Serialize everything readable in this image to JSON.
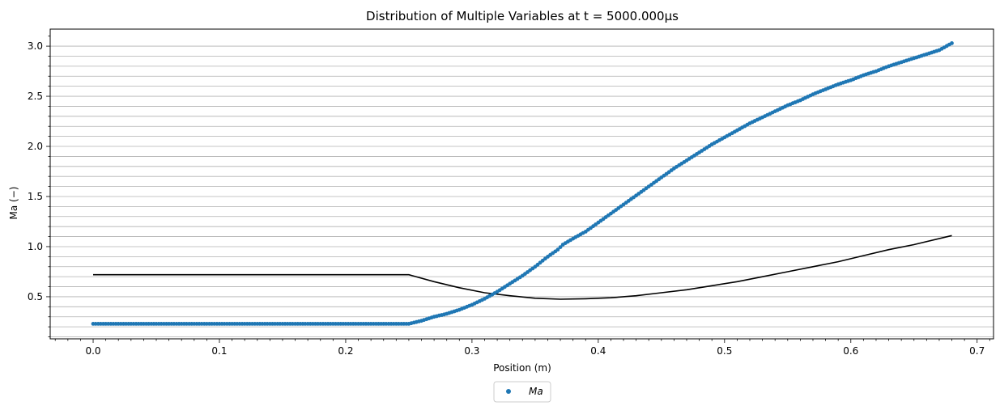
{
  "chart_data": {
    "type": "scatter",
    "title": "Distribution of Multiple Variables at t = 5000.000μs",
    "xlabel": "Position (m)",
    "ylabel": "Ma (−)",
    "xlim": [
      -0.034,
      0.713
    ],
    "ylim": [
      0.08,
      3.17
    ],
    "x_ticks": [
      "0.0",
      "0.1",
      "0.2",
      "0.3",
      "0.4",
      "0.5",
      "0.6",
      "0.7"
    ],
    "y_ticks": [
      "0.5",
      "1.0",
      "1.5",
      "2.0",
      "2.5",
      "3.0"
    ],
    "grid": "horizontal minor gridlines",
    "legend": {
      "placement": "bottom-center",
      "entries": [
        "Ma"
      ]
    },
    "series": [
      {
        "name": "Ma",
        "kind": "scatter",
        "color": "#1f77b4",
        "x": [
          0.0,
          0.02,
          0.04,
          0.06,
          0.08,
          0.1,
          0.12,
          0.14,
          0.16,
          0.18,
          0.2,
          0.22,
          0.24,
          0.25,
          0.26,
          0.27,
          0.28,
          0.29,
          0.3,
          0.31,
          0.32,
          0.33,
          0.34,
          0.35,
          0.36,
          0.368,
          0.372,
          0.38,
          0.39,
          0.4,
          0.41,
          0.42,
          0.43,
          0.44,
          0.45,
          0.46,
          0.47,
          0.48,
          0.49,
          0.5,
          0.51,
          0.52,
          0.53,
          0.54,
          0.55,
          0.56,
          0.57,
          0.58,
          0.59,
          0.6,
          0.61,
          0.62,
          0.63,
          0.64,
          0.65,
          0.66,
          0.67,
          0.68
        ],
        "y": [
          0.23,
          0.23,
          0.23,
          0.23,
          0.23,
          0.23,
          0.23,
          0.23,
          0.23,
          0.23,
          0.23,
          0.23,
          0.23,
          0.23,
          0.26,
          0.3,
          0.33,
          0.37,
          0.42,
          0.48,
          0.55,
          0.63,
          0.71,
          0.8,
          0.9,
          0.97,
          1.02,
          1.08,
          1.15,
          1.24,
          1.33,
          1.42,
          1.51,
          1.6,
          1.69,
          1.78,
          1.86,
          1.94,
          2.02,
          2.09,
          2.16,
          2.23,
          2.29,
          2.35,
          2.41,
          2.46,
          2.52,
          2.57,
          2.62,
          2.66,
          2.71,
          2.75,
          2.8,
          2.84,
          2.88,
          2.92,
          2.96,
          3.03
        ]
      },
      {
        "name": "",
        "kind": "line",
        "color": "#000000",
        "x": [
          0.0,
          0.05,
          0.1,
          0.15,
          0.2,
          0.25,
          0.27,
          0.29,
          0.31,
          0.33,
          0.35,
          0.37,
          0.39,
          0.41,
          0.43,
          0.45,
          0.47,
          0.49,
          0.51,
          0.53,
          0.55,
          0.57,
          0.59,
          0.61,
          0.63,
          0.65,
          0.68
        ],
        "y": [
          0.72,
          0.72,
          0.72,
          0.72,
          0.72,
          0.72,
          0.65,
          0.59,
          0.54,
          0.51,
          0.485,
          0.475,
          0.48,
          0.49,
          0.51,
          0.54,
          0.57,
          0.61,
          0.65,
          0.7,
          0.75,
          0.8,
          0.85,
          0.91,
          0.97,
          1.02,
          1.11
        ]
      }
    ]
  }
}
